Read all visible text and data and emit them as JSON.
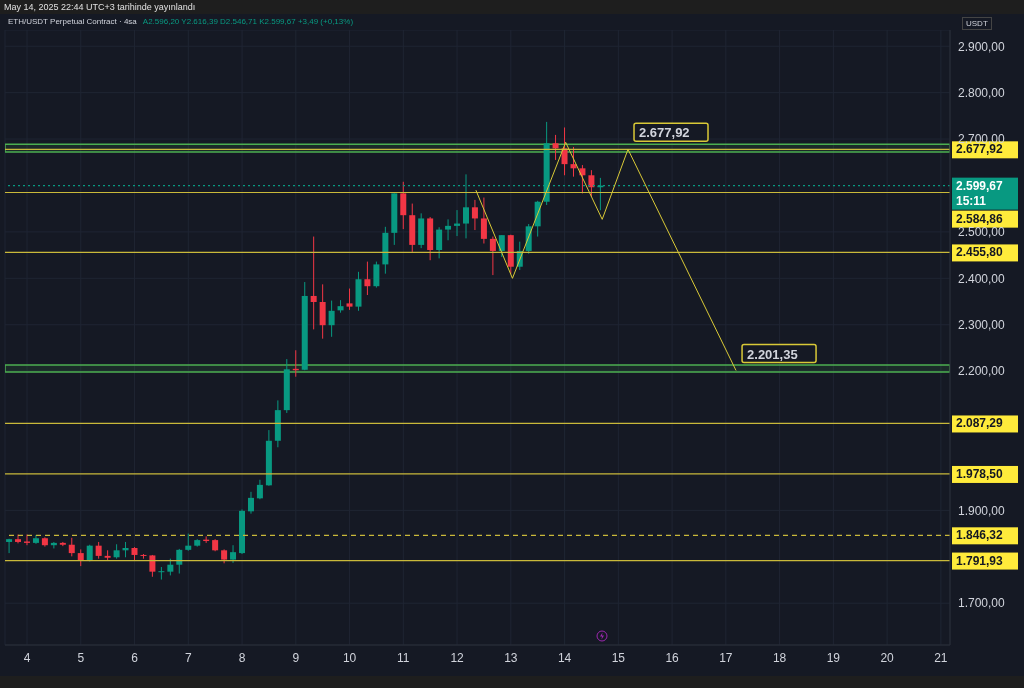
{
  "chart_data": {
    "type": "candlestick",
    "title": "ETH/USDT Perpetual Contract · 4sa",
    "subtitle": "A2.596,20 Y2.616,39 D2.546,71 K2.599,67 +3,49 (+0,13%)",
    "ylabel": "USDT",
    "x": [
      3.667,
      3.833,
      4,
      4.167,
      4.333,
      4.5,
      4.667,
      4.833,
      5,
      5.167,
      5.333,
      5.5,
      5.667,
      5.833,
      6,
      6.167,
      6.333,
      6.5,
      6.667,
      6.833,
      7,
      7.167,
      7.333,
      7.5,
      7.667,
      7.833,
      8,
      8.167,
      8.333,
      8.5,
      8.667,
      8.833,
      9,
      9.167,
      9.333,
      9.5,
      9.667,
      9.833,
      10,
      10.167,
      10.333,
      10.5,
      10.667,
      10.833,
      11,
      11.167,
      11.333,
      11.5,
      11.667,
      11.833,
      12,
      12.167,
      12.333,
      12.5,
      12.667,
      12.833,
      13,
      13.167,
      13.333,
      13.5,
      13.667,
      13.833,
      14,
      14.167,
      14.333,
      14.5,
      14.667
    ],
    "ohlc": [
      [
        1832,
        1839,
        1808,
        1838
      ],
      [
        1838,
        1848,
        1829,
        1832
      ],
      [
        1833,
        1848,
        1825,
        1830
      ],
      [
        1830,
        1847,
        1828,
        1840
      ],
      [
        1840,
        1842,
        1822,
        1825
      ],
      [
        1825,
        1832,
        1818,
        1830
      ],
      [
        1830,
        1832,
        1823,
        1826
      ],
      [
        1826,
        1841,
        1801,
        1808
      ],
      [
        1808,
        1816,
        1780,
        1792
      ],
      [
        1792,
        1826,
        1790,
        1824
      ],
      [
        1824,
        1832,
        1796,
        1802
      ],
      [
        1802,
        1814,
        1793,
        1798
      ],
      [
        1799,
        1827,
        1796,
        1814
      ],
      [
        1814,
        1832,
        1799,
        1819
      ],
      [
        1819,
        1821,
        1791,
        1804
      ],
      [
        1804,
        1806,
        1796,
        1802
      ],
      [
        1803,
        1804,
        1757,
        1768
      ],
      [
        1767,
        1778,
        1751,
        1769
      ],
      [
        1768,
        1796,
        1760,
        1783
      ],
      [
        1783,
        1817,
        1764,
        1815
      ],
      [
        1815,
        1850,
        1813,
        1824
      ],
      [
        1824,
        1838,
        1822,
        1836
      ],
      [
        1837,
        1844,
        1830,
        1834
      ],
      [
        1836,
        1838,
        1812,
        1814
      ],
      [
        1814,
        1816,
        1786,
        1794
      ],
      [
        1794,
        1825,
        1787,
        1810
      ],
      [
        1808,
        1902,
        1806,
        1899
      ],
      [
        1898,
        1940,
        1893,
        1927
      ],
      [
        1926,
        1966,
        1924,
        1955
      ],
      [
        1954,
        2073,
        1953,
        2050
      ],
      [
        2050,
        2137,
        2036,
        2116
      ],
      [
        2116,
        2226,
        2110,
        2204
      ],
      [
        2205,
        2245,
        2188,
        2202
      ],
      [
        2203,
        2392,
        2202,
        2362
      ],
      [
        2362,
        2490,
        2290,
        2349
      ],
      [
        2349,
        2387,
        2270,
        2299
      ],
      [
        2299,
        2352,
        2274,
        2330
      ],
      [
        2331,
        2353,
        2326,
        2340
      ],
      [
        2346,
        2378,
        2332,
        2339
      ],
      [
        2339,
        2414,
        2330,
        2398
      ],
      [
        2398,
        2436,
        2364,
        2383
      ],
      [
        2383,
        2436,
        2380,
        2430
      ],
      [
        2430,
        2511,
        2410,
        2498
      ],
      [
        2498,
        2583,
        2472,
        2583
      ],
      [
        2583,
        2608,
        2506,
        2536
      ],
      [
        2536,
        2561,
        2457,
        2472
      ],
      [
        2472,
        2540,
        2465,
        2529
      ],
      [
        2529,
        2532,
        2439,
        2461
      ],
      [
        2461,
        2510,
        2443,
        2505
      ],
      [
        2505,
        2527,
        2482,
        2513
      ],
      [
        2513,
        2547,
        2491,
        2518
      ],
      [
        2518,
        2624,
        2486,
        2553
      ],
      [
        2553,
        2569,
        2504,
        2529
      ],
      [
        2529,
        2574,
        2475,
        2485
      ],
      [
        2485,
        2490,
        2407,
        2459
      ],
      [
        2459,
        2493,
        2446,
        2493
      ],
      [
        2493,
        2494,
        2410,
        2425
      ],
      [
        2425,
        2479,
        2418,
        2459
      ],
      [
        2459,
        2517,
        2453,
        2512
      ],
      [
        2512,
        2567,
        2490,
        2565
      ],
      [
        2565,
        2737,
        2558,
        2691
      ],
      [
        2691,
        2709,
        2655,
        2680
      ],
      [
        2680,
        2725,
        2622,
        2646
      ],
      [
        2646,
        2683,
        2619,
        2637
      ],
      [
        2637,
        2644,
        2583,
        2622
      ],
      [
        2622,
        2633,
        2576,
        2596.2
      ],
      [
        2596.2,
        2616.39,
        2546.71,
        2599.67
      ]
    ],
    "series": [
      {
        "type": "line",
        "color": "#d9c937",
        "x": [
          12.35,
          13.03,
          14.02,
          14.7,
          15.18,
          17.19
        ],
        "values": [
          2590,
          2400,
          2693,
          2527,
          2677.92,
          2201.35
        ]
      }
    ],
    "xlim": [
      3.59,
      21.17
    ],
    "xticks": [
      4,
      5,
      6,
      7,
      8,
      9,
      10,
      11,
      12,
      13,
      14,
      15,
      16,
      17,
      18,
      19,
      20,
      21
    ],
    "ylim": [
      1610,
      2935
    ],
    "yticks": [
      {
        "value": 1700,
        "label": "1.700,00"
      },
      {
        "value": 1900,
        "label": "1.900,00"
      },
      {
        "value": 2200,
        "label": "2.200,00"
      },
      {
        "value": 2300,
        "label": "2.300,00"
      },
      {
        "value": 2400,
        "label": "2.400,00"
      },
      {
        "value": 2500,
        "label": "2.500,00"
      },
      {
        "value": 2700,
        "label": "2.700,00"
      },
      {
        "value": 2800,
        "label": "2.800,00"
      },
      {
        "value": 2900,
        "label": "2.900,00"
      }
    ],
    "grid": true,
    "marker": "none",
    "ref_lines": [
      {
        "axis": "y",
        "value": 2677.92,
        "label": "2.677,92",
        "color": "#c9b93a",
        "line_style": "solid"
      },
      {
        "axis": "y",
        "value": 2599.67,
        "label": "2.599,67\n15:11",
        "color": "#089981",
        "line_style": "dotted"
      },
      {
        "axis": "y",
        "value": 2584.86,
        "label": "2.584,86",
        "color": "#c9b93a",
        "line_style": "solid"
      },
      {
        "axis": "y",
        "value": 2455.8,
        "label": "2.455,80",
        "color": "#c9b93a",
        "line_style": "solid"
      },
      {
        "axis": "y",
        "value": 2087.29,
        "label": "2.087,29",
        "color": "#c9b93a",
        "line_style": "solid"
      },
      {
        "axis": "y",
        "value": 1978.5,
        "label": "1.978,50",
        "color": "#c9b93a",
        "line_style": "solid"
      },
      {
        "axis": "y",
        "value": 1846.32,
        "label": "1.846,32",
        "color": "#c9b93a",
        "line_style": "dashed"
      },
      {
        "axis": "y",
        "value": 1791.93,
        "label": "1.791,93",
        "color": "#c9b93a",
        "line_style": "solid"
      }
    ],
    "bands": [
      {
        "axis": "y",
        "from": 2672,
        "to": 2689,
        "color": "#4caf50"
      },
      {
        "axis": "y",
        "from": 2198,
        "to": 2213,
        "color": "#4caf50"
      }
    ],
    "annotations": [
      "May 14, 2025 22:44 UTC+3 tarihinde yayınlandı",
      {
        "text": "2.677,92",
        "x": 15.18,
        "y": 2677.92
      },
      {
        "text": "2.201,35",
        "x": 17.19,
        "y": 2201.35
      }
    ]
  }
}
